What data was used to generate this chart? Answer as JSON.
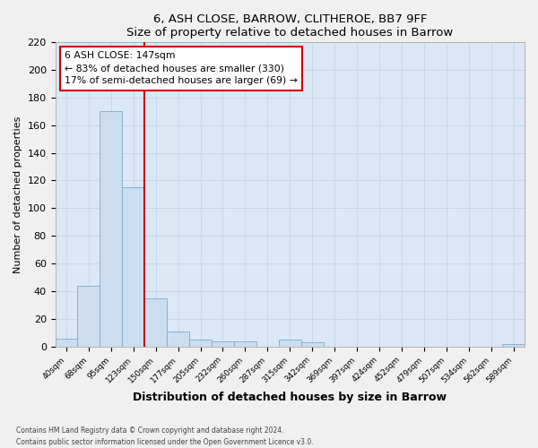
{
  "title": "6, ASH CLOSE, BARROW, CLITHEROE, BB7 9FF",
  "subtitle": "Size of property relative to detached houses in Barrow",
  "xlabel": "Distribution of detached houses by size in Barrow",
  "ylabel": "Number of detached properties",
  "bar_labels": [
    "40sqm",
    "68sqm",
    "95sqm",
    "123sqm",
    "150sqm",
    "177sqm",
    "205sqm",
    "232sqm",
    "260sqm",
    "287sqm",
    "315sqm",
    "342sqm",
    "369sqm",
    "397sqm",
    "424sqm",
    "452sqm",
    "479sqm",
    "507sqm",
    "534sqm",
    "562sqm",
    "589sqm"
  ],
  "bar_values": [
    6,
    44,
    170,
    115,
    35,
    11,
    5,
    4,
    4,
    0,
    5,
    3,
    0,
    0,
    0,
    0,
    0,
    0,
    0,
    0,
    2
  ],
  "bar_color": "#ccddf0",
  "bar_edge_color": "#7aaccc",
  "vline_x_index": 4,
  "vline_color": "#cc0000",
  "annotation_title": "6 ASH CLOSE: 147sqm",
  "annotation_line1": "← 83% of detached houses are smaller (330)",
  "annotation_line2": "17% of semi-detached houses are larger (69) →",
  "annotation_box_edgecolor": "#cc0000",
  "ylim": [
    0,
    220
  ],
  "yticks": [
    0,
    20,
    40,
    60,
    80,
    100,
    120,
    140,
    160,
    180,
    200,
    220
  ],
  "grid_color": "#c8d8e8",
  "bg_color": "#dce8f5",
  "fig_bg_color": "#f0f0f0",
  "footer_line1": "Contains HM Land Registry data © Crown copyright and database right 2024.",
  "footer_line2": "Contains public sector information licensed under the Open Government Licence v3.0."
}
